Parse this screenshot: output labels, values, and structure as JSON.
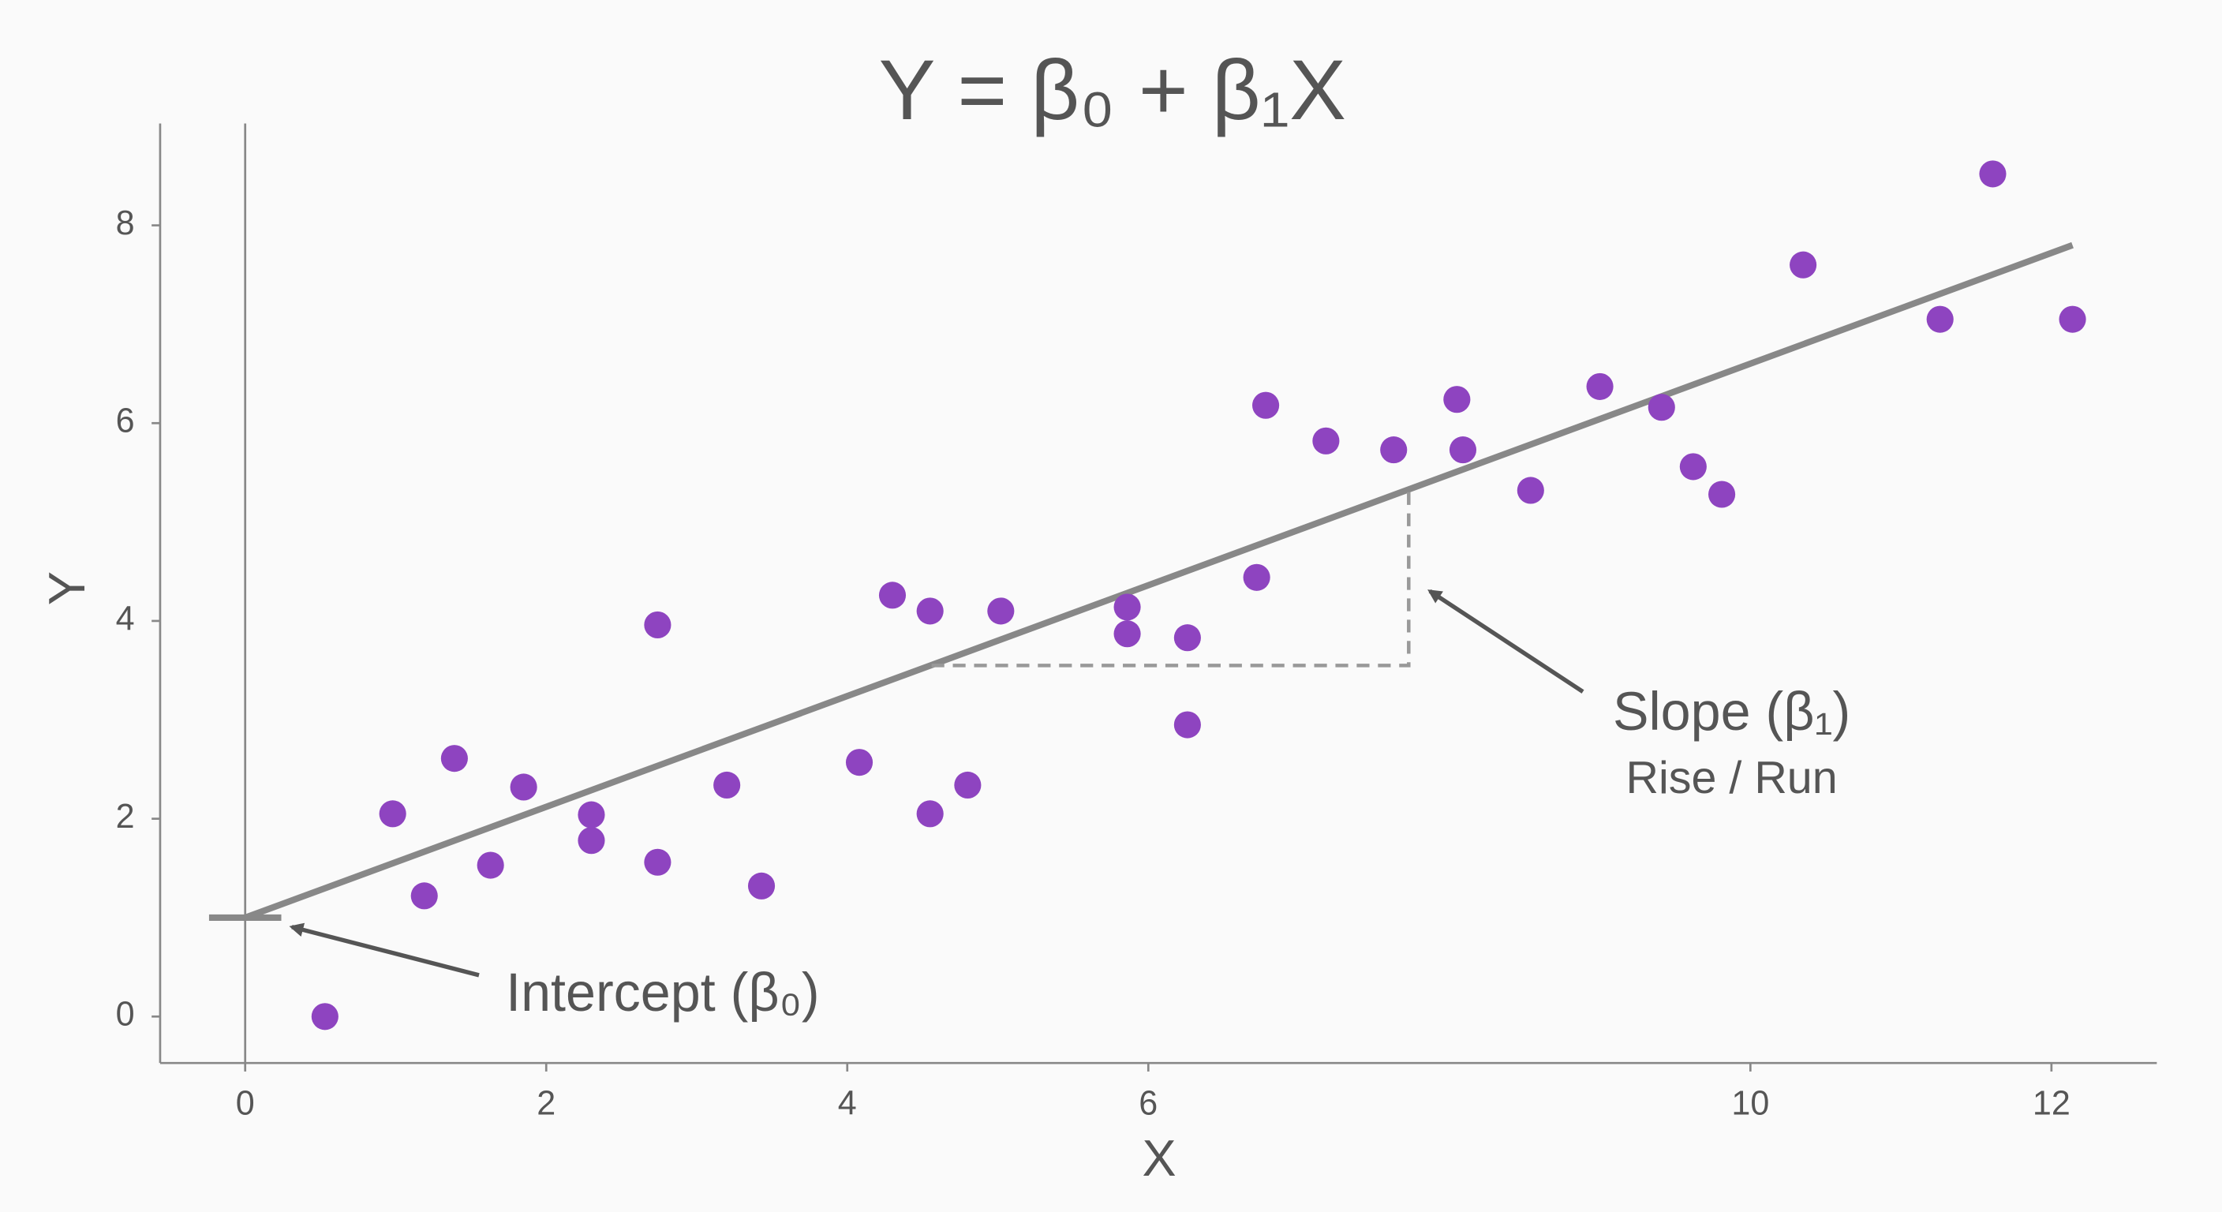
{
  "chart_data": {
    "type": "scatter",
    "title": "Y = β₀ + β₁X",
    "x_label": "X",
    "y_label": "Y",
    "xlim": [
      -0.565,
      12.7
    ],
    "ylim": [
      -0.47,
      9.03
    ],
    "xticks": [
      0,
      2,
      4,
      6,
      10,
      12
    ],
    "yticks": [
      0,
      2,
      4,
      6,
      8
    ],
    "series": [
      {
        "color": "#8e44c0",
        "x": [
          0.53,
          0.98,
          1.19,
          1.39,
          1.63,
          1.85,
          2.3,
          2.3,
          2.74,
          2.74,
          3.2,
          3.43,
          4.08,
          4.3,
          4.55,
          4.55,
          4.8,
          5.02,
          5.86,
          5.86,
          6.26,
          6.26,
          6.72,
          6.78,
          7.18,
          7.63,
          8.05,
          8.09,
          8.54,
          9.0,
          9.41,
          9.62,
          9.81,
          10.35,
          11.26,
          11.61,
          12.14
        ],
        "values": [
          0,
          2.05,
          1.22,
          2.61,
          1.53,
          2.32,
          2.04,
          1.78,
          3.96,
          1.56,
          2.34,
          1.32,
          2.57,
          4.26,
          4.1,
          2.05,
          2.34,
          4.1,
          4.14,
          3.87,
          3.83,
          2.95,
          4.44,
          6.18,
          5.82,
          5.73,
          6.24,
          5.73,
          5.32,
          6.37,
          6.16,
          5.56,
          5.28,
          7.6,
          7.05,
          8.52,
          7.05
        ]
      }
    ],
    "lines": [
      {
        "color": "#888888",
        "dashed": false,
        "x": [
          0,
          12.14
        ],
        "values": [
          1.0,
          7.8
        ]
      },
      {
        "color": "#888888",
        "dashed": false,
        "x": [
          -0.24,
          0.24
        ],
        "values": [
          1.0,
          1.0
        ]
      },
      {
        "color": "#999999",
        "dashed": true,
        "x": [
          4.56,
          7.73,
          7.73
        ],
        "values": [
          3.55,
          3.55,
          5.33
        ]
      }
    ],
    "annotations": [
      "Intercept (β₀)",
      "Slope (β₁)",
      "Rise / Run"
    ]
  }
}
